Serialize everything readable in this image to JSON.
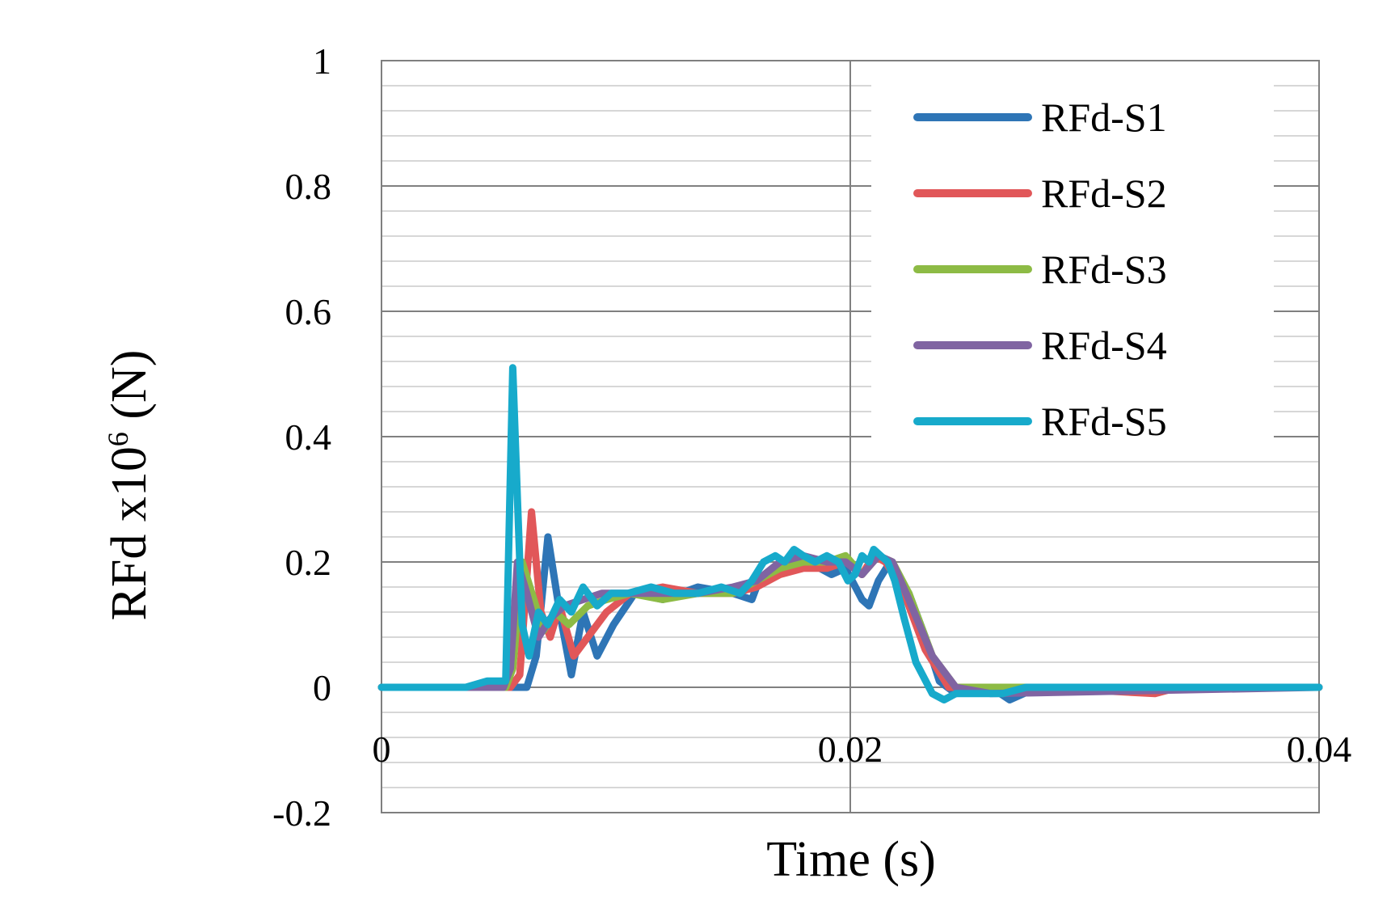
{
  "chart_data": {
    "type": "line",
    "title": "",
    "xlabel": "Time (s)",
    "ylabel_main": "RFd x10",
    "ylabel_sup": "6",
    "ylabel_unit": " (N)",
    "xlim": [
      0,
      0.04
    ],
    "ylim": [
      -0.2,
      1
    ],
    "x_ticks": [
      0,
      0.02,
      0.04
    ],
    "x_tick_labels": [
      "0",
      "0.02",
      "0.04"
    ],
    "y_ticks": [
      -0.2,
      0,
      0.2,
      0.4,
      0.6,
      0.8,
      1
    ],
    "y_tick_labels": [
      "-0.2",
      "0",
      "0.2",
      "0.4",
      "0.6",
      "0.8",
      "1"
    ],
    "grid": {
      "major_y": true,
      "minor_y_step": 0.04,
      "major_x": true
    },
    "legend": {
      "position": "top-right"
    },
    "series": [
      {
        "name": "RFd-S1",
        "color": "#2E75B6",
        "x": [
          0,
          0.0042,
          0.0058,
          0.0062,
          0.0066,
          0.0071,
          0.0076,
          0.0081,
          0.0086,
          0.0092,
          0.0099,
          0.0108,
          0.012,
          0.0135,
          0.015,
          0.0158,
          0.016,
          0.0165,
          0.0172,
          0.0182,
          0.0192,
          0.0198,
          0.0205,
          0.0208,
          0.0212,
          0.0217,
          0.0225,
          0.0232,
          0.0238,
          0.0245,
          0.026,
          0.0268,
          0.028,
          0.033,
          0.04
        ],
        "y": [
          0,
          0,
          0,
          0,
          0.05,
          0.24,
          0.12,
          0.02,
          0.12,
          0.05,
          0.1,
          0.15,
          0.14,
          0.16,
          0.15,
          0.14,
          0.16,
          0.18,
          0.19,
          0.2,
          0.18,
          0.19,
          0.14,
          0.13,
          0.17,
          0.2,
          0.15,
          0.08,
          0.01,
          -0.01,
          0,
          -0.02,
          0,
          0,
          0
        ]
      },
      {
        "name": "RFd-S2",
        "color": "#E15759",
        "x": [
          0,
          0.0042,
          0.0055,
          0.0059,
          0.0064,
          0.0068,
          0.0072,
          0.0076,
          0.0082,
          0.0088,
          0.0096,
          0.0106,
          0.012,
          0.0135,
          0.015,
          0.016,
          0.017,
          0.018,
          0.019,
          0.0198,
          0.0205,
          0.021,
          0.0215,
          0.0222,
          0.0232,
          0.0242,
          0.025,
          0.0265,
          0.028,
          0.033,
          0.034,
          0.04
        ],
        "y": [
          0,
          0,
          0,
          0.02,
          0.28,
          0.12,
          0.08,
          0.13,
          0.05,
          0.08,
          0.12,
          0.15,
          0.16,
          0.15,
          0.15,
          0.16,
          0.18,
          0.19,
          0.19,
          0.2,
          0.18,
          0.21,
          0.2,
          0.16,
          0.06,
          0,
          0,
          -0.01,
          0,
          -0.01,
          0,
          0
        ]
      },
      {
        "name": "RFd-S3",
        "color": "#8DBB45",
        "x": [
          0,
          0.0042,
          0.0053,
          0.0056,
          0.006,
          0.0065,
          0.0069,
          0.0074,
          0.008,
          0.0088,
          0.0096,
          0.0106,
          0.012,
          0.0135,
          0.015,
          0.016,
          0.017,
          0.018,
          0.019,
          0.0198,
          0.0205,
          0.0212,
          0.0218,
          0.0225,
          0.0235,
          0.0245,
          0.026,
          0.04
        ],
        "y": [
          0,
          0,
          0,
          0.03,
          0.2,
          0.14,
          0.09,
          0.12,
          0.1,
          0.13,
          0.14,
          0.15,
          0.14,
          0.15,
          0.15,
          0.17,
          0.19,
          0.2,
          0.2,
          0.21,
          0.18,
          0.21,
          0.2,
          0.15,
          0.05,
          0,
          0,
          0
        ]
      },
      {
        "name": "RFd-S4",
        "color": "#8064A2",
        "x": [
          0,
          0.0042,
          0.0052,
          0.0055,
          0.0058,
          0.0062,
          0.0067,
          0.0072,
          0.0078,
          0.0086,
          0.0094,
          0.0105,
          0.012,
          0.0135,
          0.015,
          0.016,
          0.017,
          0.018,
          0.019,
          0.0198,
          0.0205,
          0.0212,
          0.0218,
          0.0225,
          0.0235,
          0.0245,
          0.026,
          0.04
        ],
        "y": [
          0,
          0,
          0,
          0.03,
          0.2,
          0.15,
          0.08,
          0.11,
          0.13,
          0.14,
          0.15,
          0.15,
          0.15,
          0.15,
          0.16,
          0.17,
          0.2,
          0.21,
          0.2,
          0.2,
          0.18,
          0.21,
          0.2,
          0.14,
          0.05,
          0,
          -0.01,
          0
        ]
      },
      {
        "name": "RFd-S5",
        "color": "#17AACB",
        "x": [
          0,
          0.0036,
          0.0045,
          0.005,
          0.0053,
          0.0056,
          0.0058,
          0.006,
          0.0063,
          0.0067,
          0.0071,
          0.0076,
          0.0081,
          0.0086,
          0.0092,
          0.0098,
          0.0105,
          0.0115,
          0.0125,
          0.0135,
          0.0145,
          0.0153,
          0.0158,
          0.0163,
          0.0168,
          0.0172,
          0.0176,
          0.018,
          0.0185,
          0.019,
          0.0195,
          0.0199,
          0.0202,
          0.0205,
          0.0208,
          0.021,
          0.0213,
          0.0216,
          0.0219,
          0.0223,
          0.0228,
          0.0235,
          0.024,
          0.0245,
          0.0255,
          0.0265,
          0.0275,
          0.03,
          0.034,
          0.04
        ],
        "y": [
          0,
          0,
          0.01,
          0.01,
          0.01,
          0.51,
          0.3,
          0.1,
          0.05,
          0.12,
          0.1,
          0.14,
          0.12,
          0.16,
          0.13,
          0.15,
          0.15,
          0.16,
          0.15,
          0.15,
          0.16,
          0.15,
          0.17,
          0.2,
          0.21,
          0.2,
          0.22,
          0.21,
          0.2,
          0.21,
          0.2,
          0.17,
          0.18,
          0.21,
          0.2,
          0.22,
          0.21,
          0.2,
          0.17,
          0.11,
          0.04,
          -0.01,
          -0.02,
          -0.01,
          -0.01,
          -0.01,
          0,
          0,
          0,
          0
        ]
      }
    ]
  }
}
